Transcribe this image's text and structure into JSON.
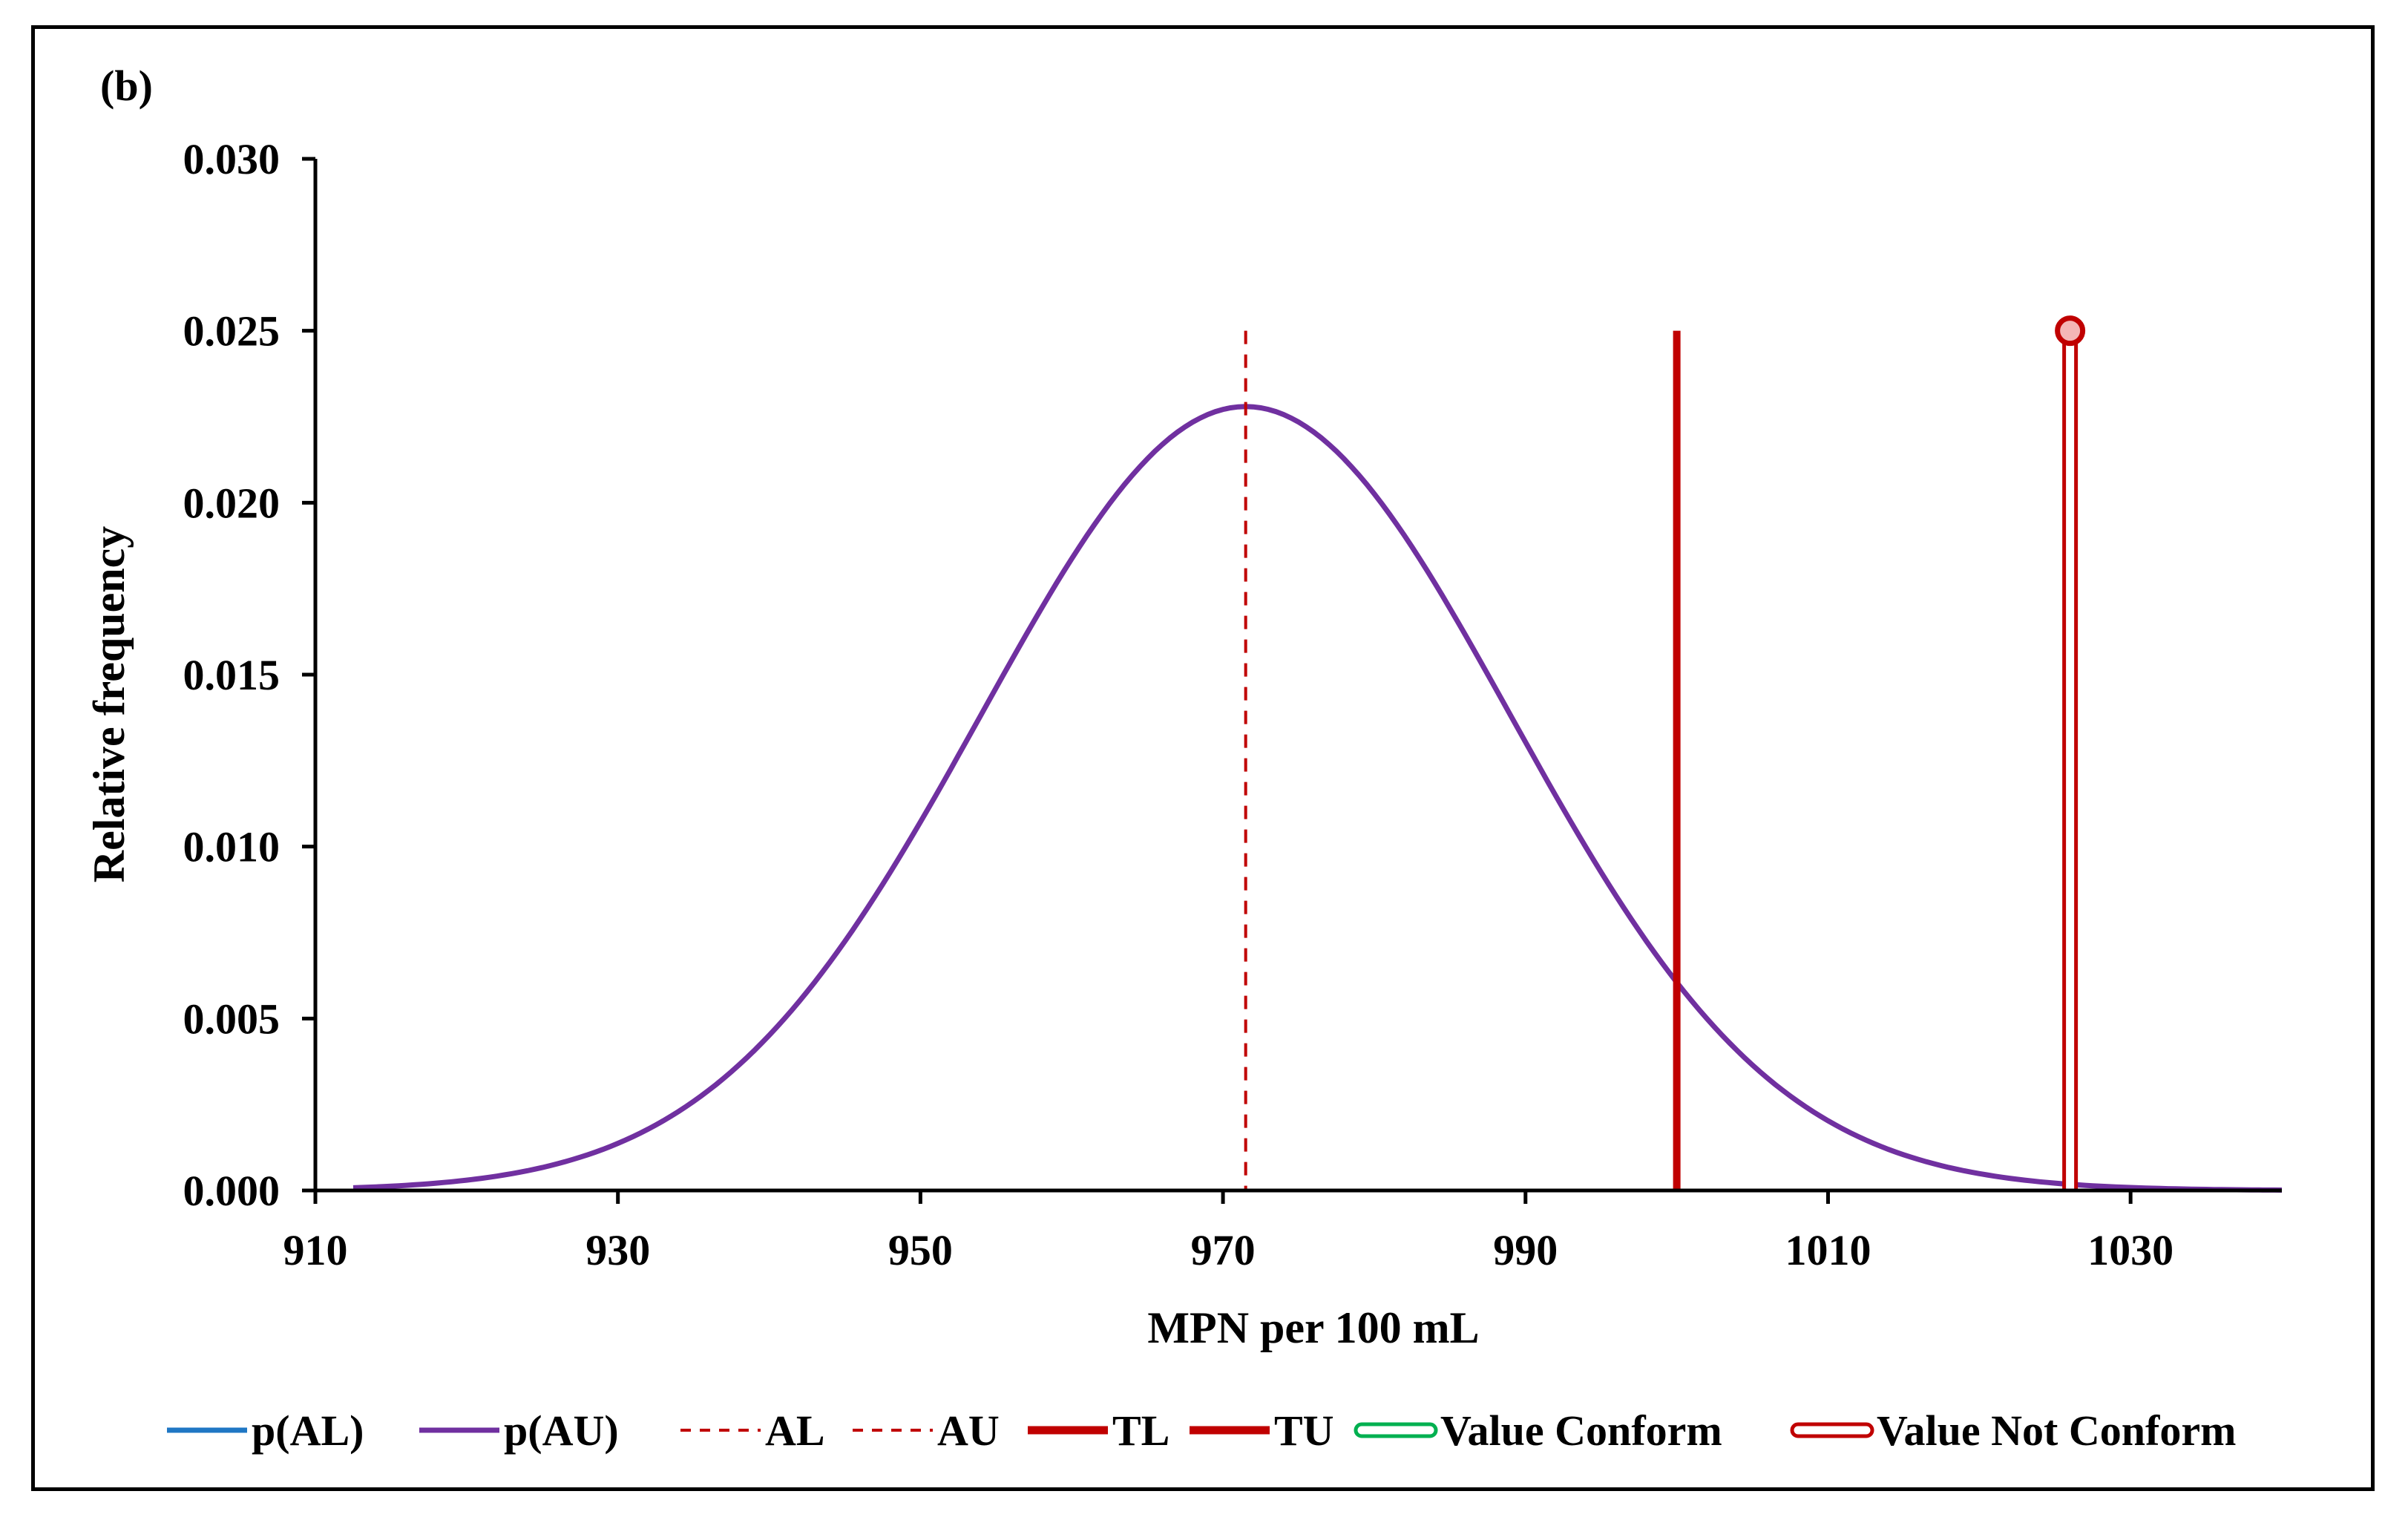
{
  "chart_data": {
    "type": "line",
    "panel_label": "(b)",
    "xlabel": "MPN per 100 mL",
    "ylabel": "Relative frequency",
    "xlim": [
      910,
      1040
    ],
    "ylim": [
      0,
      0.03
    ],
    "x_ticks": [
      "910",
      "930",
      "950",
      "970",
      "990",
      "1010",
      "1030"
    ],
    "y_ticks": [
      "0.000",
      "0.005",
      "0.010",
      "0.015",
      "0.020",
      "0.025",
      "0.030"
    ],
    "series": [
      {
        "name": "p(AL)",
        "color": "#1f77c4",
        "style": "solid",
        "values": []
      },
      {
        "name": "p(AU)",
        "color": "#7030a0",
        "style": "solid",
        "distribution": "normal",
        "mean": 971.5,
        "sd": 17.5,
        "x_range": [
          912.5,
          1040
        ]
      },
      {
        "name": "AL",
        "color": "#c00000",
        "style": "dashed",
        "x": 971.5,
        "y_top": 0.025
      },
      {
        "name": "AU",
        "color": "#c00000",
        "style": "dashed",
        "x": 971.5,
        "y_top": 0.025
      },
      {
        "name": "TL",
        "color": "#c00000",
        "style": "thick",
        "x": 1000,
        "y_top": 0.025
      },
      {
        "name": "TU",
        "color": "#c00000",
        "style": "thick",
        "x": 1000,
        "y_top": 0.025
      },
      {
        "name": "Value Conform",
        "color": "#00b050",
        "style": "double",
        "values": []
      },
      {
        "name": "Value Not Conform",
        "color": "#c00000",
        "style": "double",
        "x": 1026,
        "y_top": 0.025
      }
    ]
  }
}
